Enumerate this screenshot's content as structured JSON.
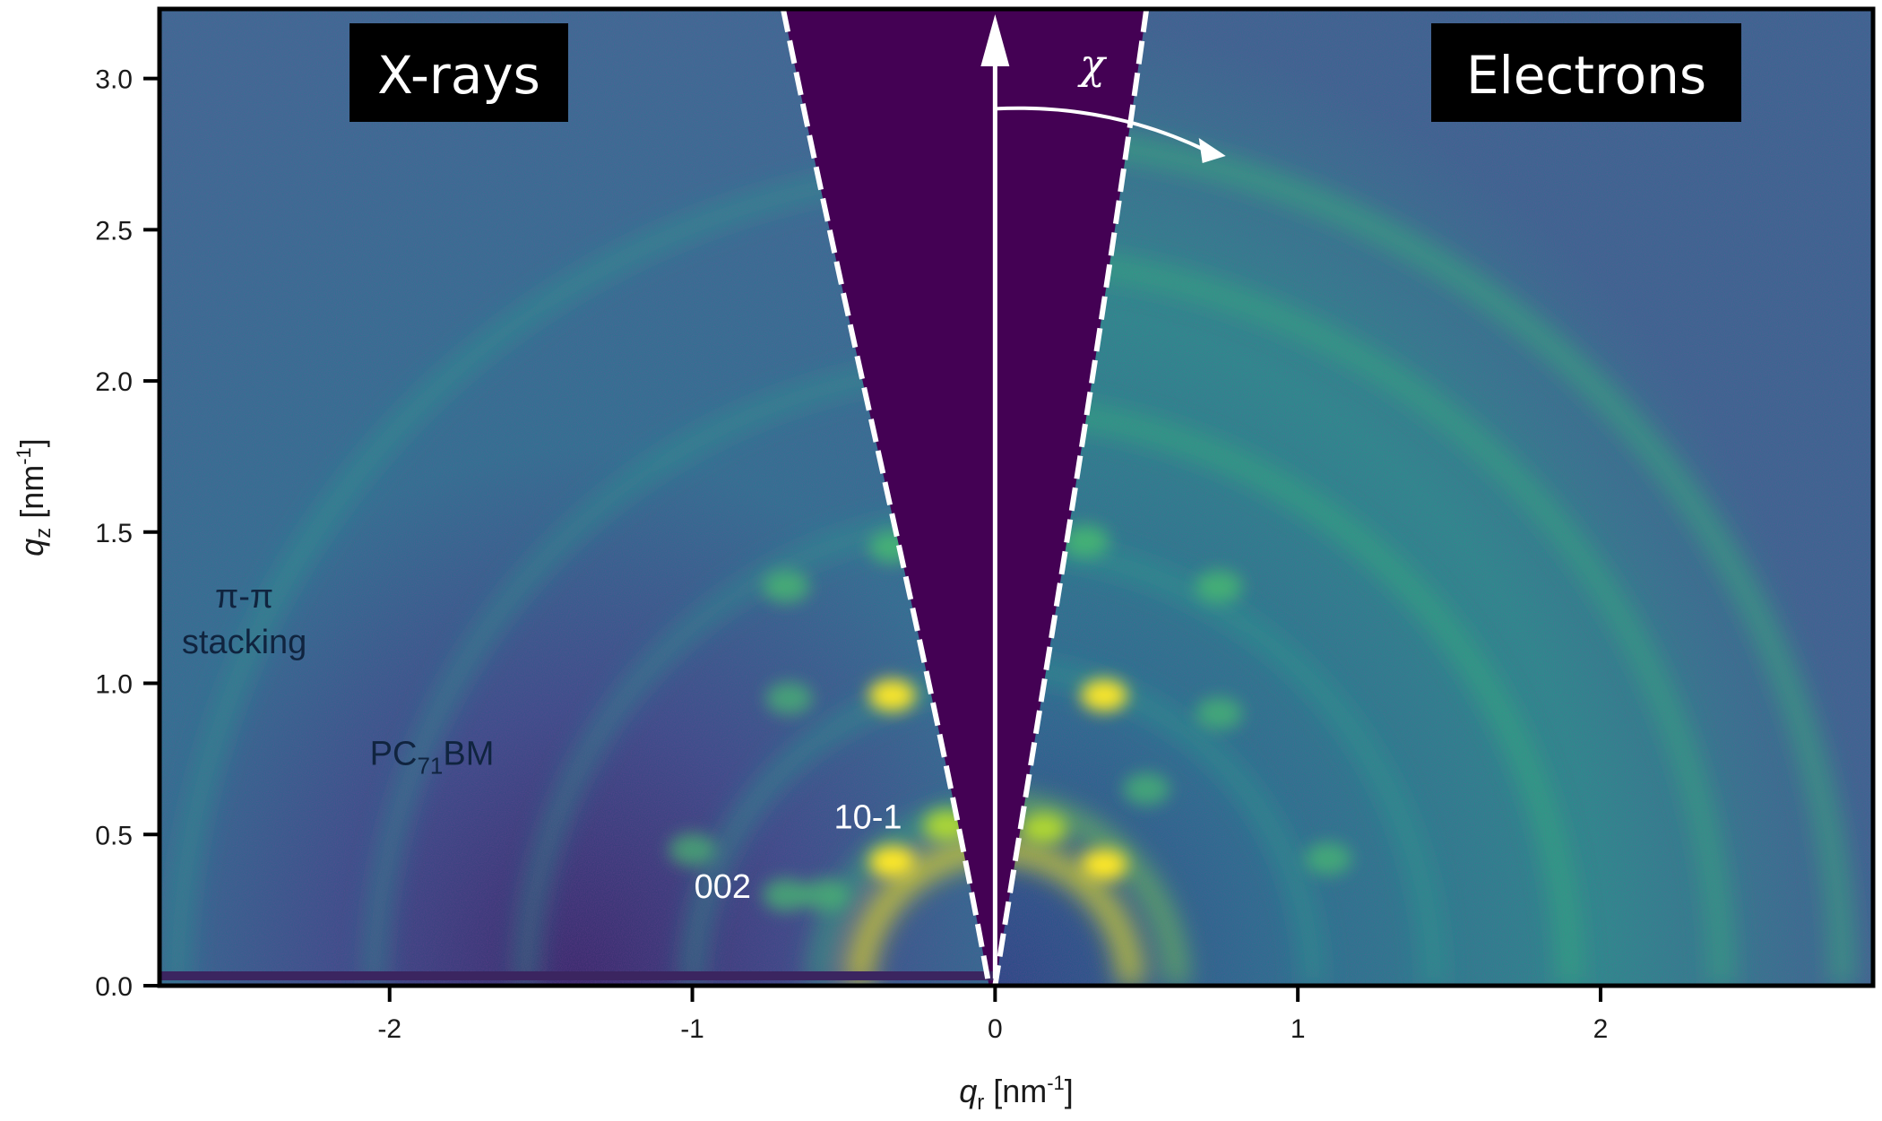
{
  "chart_data": {
    "type": "heatmap",
    "title": "",
    "xlabel": {
      "var": "q",
      "sub": "r",
      "unit": " [nm",
      "exp": "-1",
      "close": "]"
    },
    "ylabel": {
      "var": "q",
      "sub": "z",
      "unit": " [nm",
      "exp": "-1",
      "close": "]"
    },
    "xlim": [
      -2.76,
      2.9
    ],
    "ylim": [
      0,
      3.23
    ],
    "x_ticks": [
      {
        "value": -2,
        "label": "-2"
      },
      {
        "value": -1,
        "label": "-1"
      },
      {
        "value": 0,
        "label": "0"
      },
      {
        "value": 1,
        "label": "1"
      },
      {
        "value": 2,
        "label": "2"
      }
    ],
    "y_ticks": [
      {
        "value": 0.0,
        "label": "0.0"
      },
      {
        "value": 0.5,
        "label": "0.5"
      },
      {
        "value": 1.0,
        "label": "1.0"
      },
      {
        "value": 1.5,
        "label": "1.5"
      },
      {
        "value": 2.0,
        "label": "2.0"
      },
      {
        "value": 2.5,
        "label": "2.5"
      },
      {
        "value": 3.0,
        "label": "3.0"
      }
    ],
    "colormap": "viridis",
    "colors": {
      "low": "#440154",
      "mid": "#2c7d8c",
      "high": "#fde725",
      "background": "#3a6892"
    },
    "panels": [
      {
        "label": "X-rays",
        "side": "left"
      },
      {
        "label": "Electrons",
        "side": "right"
      }
    ],
    "wedge": {
      "left_boundary": [
        [
          -0.7,
          3.23
        ],
        [
          -0.45,
          2.0
        ],
        [
          -0.2,
          1.0
        ],
        [
          -0.02,
          0.0
        ]
      ],
      "right_boundary": [
        [
          0.5,
          3.23
        ],
        [
          0.33,
          2.0
        ],
        [
          0.16,
          1.0
        ],
        [
          0.0,
          0.0
        ]
      ],
      "arrow_label": "χ",
      "arrow_start": [
        0.0,
        2.9
      ],
      "arrow_end": [
        0.75,
        2.75
      ]
    },
    "xray_rings": [
      {
        "q": 0.45,
        "intensity": 0.9
      },
      {
        "q": 0.58,
        "intensity": 0.55
      },
      {
        "q": 1.0,
        "intensity": 0.35
      },
      {
        "q": 1.55,
        "intensity": 0.25
      },
      {
        "q": 2.05,
        "intensity": 0.25
      },
      {
        "q": 2.7,
        "intensity": 0.3
      }
    ],
    "electron_rings": [
      {
        "q": 0.45,
        "intensity": 0.85
      },
      {
        "q": 0.6,
        "intensity": 0.6
      },
      {
        "q": 1.05,
        "intensity": 0.35
      },
      {
        "q": 1.45,
        "intensity": 0.35
      },
      {
        "q": 1.9,
        "intensity": 0.5
      },
      {
        "q": 2.4,
        "intensity": 0.45
      },
      {
        "q": 2.8,
        "intensity": 0.55
      }
    ],
    "xray_spots": [
      {
        "x": -0.34,
        "y": 0.41,
        "intensity": 1.0
      },
      {
        "x": -0.34,
        "y": 0.96,
        "intensity": 0.95
      },
      {
        "x": -0.16,
        "y": 0.53,
        "intensity": 0.8
      },
      {
        "x": -0.68,
        "y": 0.95,
        "intensity": 0.35
      },
      {
        "x": -0.34,
        "y": 1.45,
        "intensity": 0.55
      },
      {
        "x": -0.69,
        "y": 1.32,
        "intensity": 0.45
      },
      {
        "x": -1.0,
        "y": 0.45,
        "intensity": 0.35
      },
      {
        "x": -0.69,
        "y": 0.3,
        "intensity": 0.4
      },
      {
        "x": -0.56,
        "y": 0.3,
        "intensity": 0.35
      }
    ],
    "electron_spots": [
      {
        "x": 0.36,
        "y": 0.4,
        "intensity": 1.0
      },
      {
        "x": 0.36,
        "y": 0.96,
        "intensity": 0.95
      },
      {
        "x": 0.16,
        "y": 0.52,
        "intensity": 0.85
      },
      {
        "x": 0.3,
        "y": 1.47,
        "intensity": 0.5
      },
      {
        "x": 0.74,
        "y": 1.32,
        "intensity": 0.45
      },
      {
        "x": 0.74,
        "y": 0.9,
        "intensity": 0.35
      },
      {
        "x": 1.1,
        "y": 0.42,
        "intensity": 0.35
      },
      {
        "x": 0.5,
        "y": 0.65,
        "intensity": 0.35
      }
    ],
    "annotations": [
      {
        "text": "π-π",
        "x": -2.48,
        "y": 1.25,
        "tone": "dark"
      },
      {
        "text": "stacking",
        "x": -2.48,
        "y": 1.1,
        "tone": "dark"
      },
      {
        "text": "PC",
        "sub": "71",
        "tail": "BM",
        "x": -1.86,
        "y": 0.73,
        "tone": "dark"
      },
      {
        "text": "10-1",
        "x": -0.42,
        "y": 0.52,
        "tone": "light"
      },
      {
        "text": "002",
        "x": -0.9,
        "y": 0.29,
        "tone": "light"
      }
    ]
  }
}
